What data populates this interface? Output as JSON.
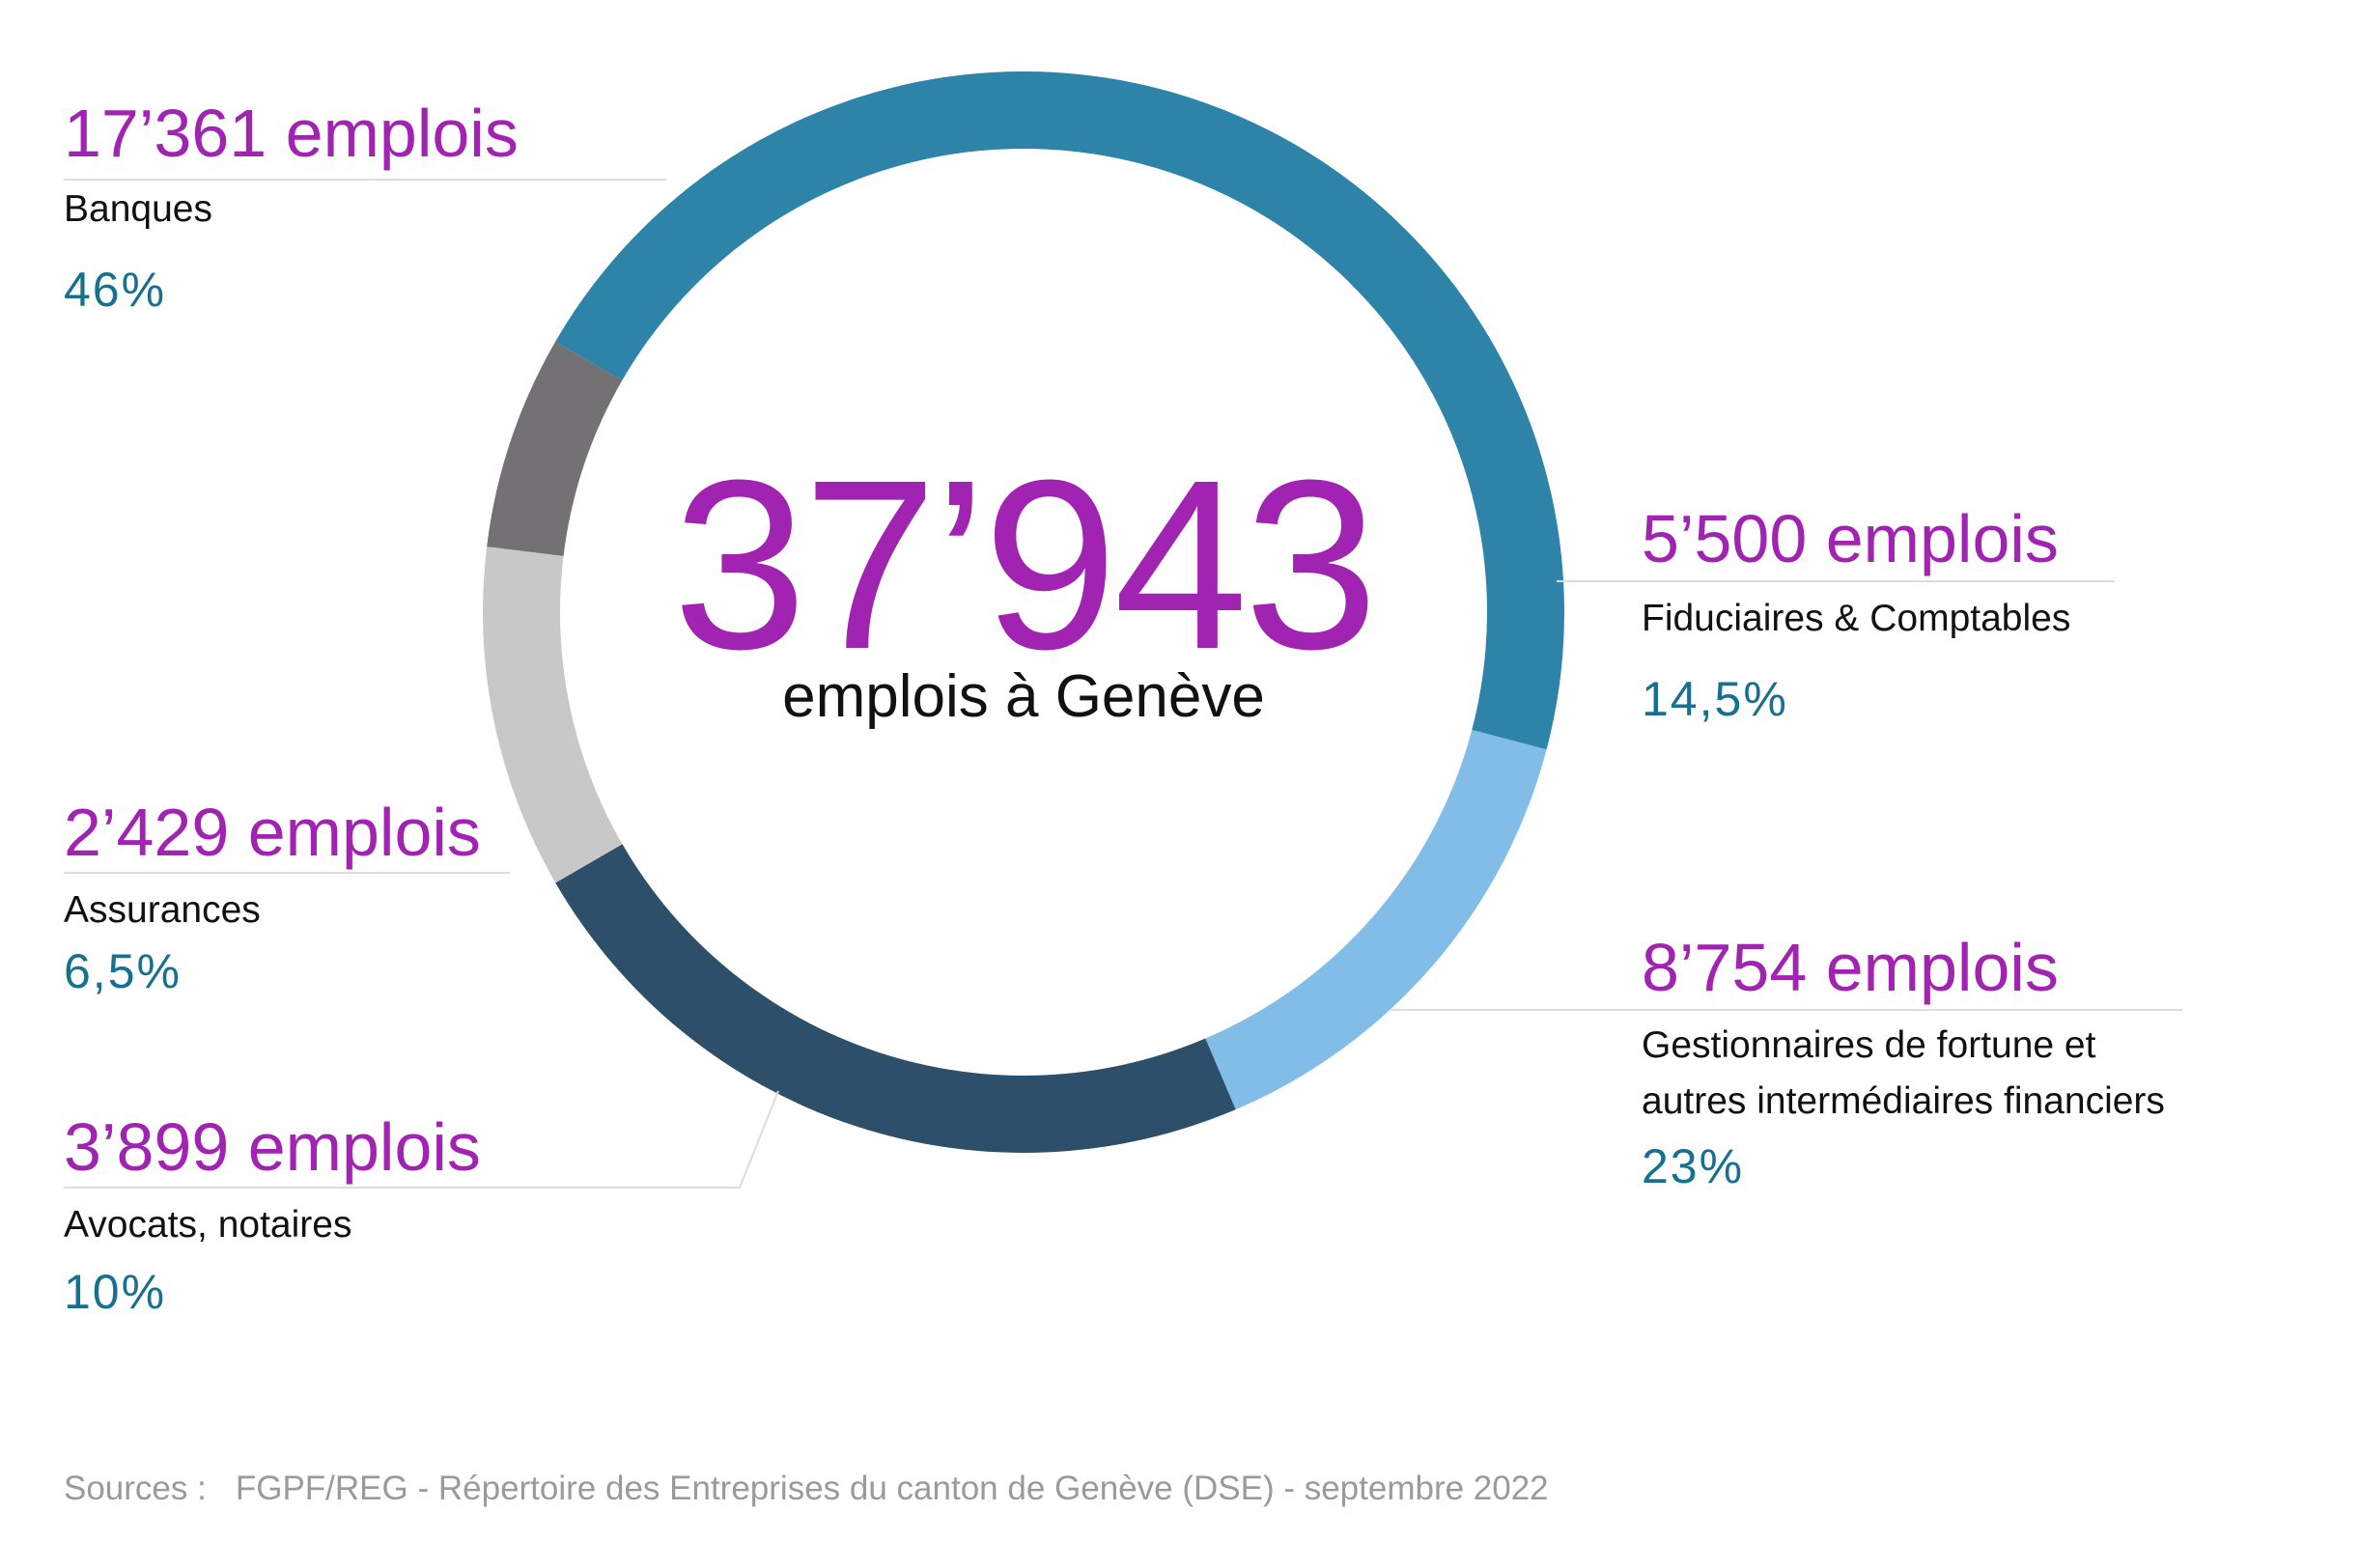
{
  "chart_data": {
    "type": "pie",
    "variant": "donut",
    "center_total": "37’943",
    "center_caption": "emplois à Genève",
    "slices": [
      {
        "value_label": "17’361 emplois",
        "name": "Banques",
        "value": 17361,
        "share_label": "46%",
        "share": 46,
        "color": "#2e83a8"
      },
      {
        "value_label": "5’500 emplois",
        "name": "Fiduciaires & Comptables",
        "value": 5500,
        "share_label": "14,5%",
        "share": 14.5,
        "color": "#82bde8"
      },
      {
        "value_label": "8’754 emplois",
        "name_lines": [
          "Gestionnaires de fortune et",
          "autres intermédiaires financiers"
        ],
        "value": 8754,
        "share_label": "23%",
        "share": 23,
        "color": "#2e4f69"
      },
      {
        "value_label": "3’899 emplois",
        "name": "Avocats, notaires",
        "value": 3899,
        "share_label": "10%",
        "share": 10,
        "color": "#c9c8c9"
      },
      {
        "value_label": "2’429 emplois",
        "name": "Assurances",
        "value": 2429,
        "share_label": "6,5%",
        "share": 6.5,
        "color": "#737174"
      }
    ],
    "start_angle_deg": -60,
    "direction": "clockwise",
    "leader_color": "#dcdcdc"
  },
  "sources": {
    "prefix": "Sources :",
    "text": "FGPF/REG - Répertoire des Entreprises du canton de Genève (DSE) - septembre 2022"
  }
}
